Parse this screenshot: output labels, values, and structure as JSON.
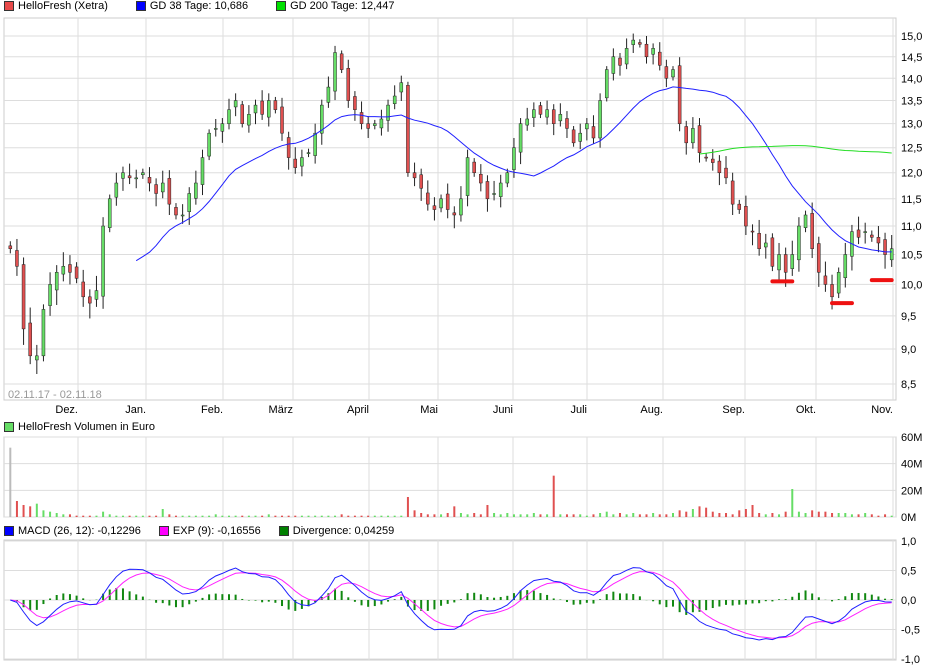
{
  "legend_main": [
    {
      "label": "HelloFresh (Xetra)",
      "color": "#e84a4a"
    },
    {
      "label": "GD 38 Tage: 10,686",
      "color": "#0000ff"
    },
    {
      "label": "GD 200 Tage: 12,447",
      "color": "#00e000"
    }
  ],
  "legend_volume": {
    "label": "HelloFresh Volumen in Euro",
    "color": "#66dd66"
  },
  "legend_macd": [
    {
      "label": "MACD (26, 12): -0,12296",
      "color": "#0000ff"
    },
    {
      "label": "EXP (9): -0,16556",
      "color": "#ff00ff"
    },
    {
      "label": "Divergence: 0,04259",
      "color": "#008000"
    }
  ],
  "date_range": "02.11.17 - 02.11.18",
  "chart_data": [
    {
      "type": "candlestick",
      "title": "HelloFresh (Xetra)",
      "yscale": "log",
      "ylim": [
        8.4,
        15.3
      ],
      "yticks": [
        "15,0",
        "14,5",
        "14,0",
        "13,5",
        "13,0",
        "12,5",
        "12,0",
        "11,5",
        "11,0",
        "10,5",
        "10,0",
        "9,5",
        "9,0",
        "8,5"
      ],
      "ytick_values": [
        15,
        14.5,
        14,
        13.5,
        13,
        12.5,
        12,
        11.5,
        11,
        10.5,
        10,
        9.5,
        9,
        8.5
      ],
      "xticks": [
        "Dez.",
        "Jan.",
        "Feb.",
        "März",
        "April",
        "Mai",
        "Juni",
        "Juli",
        "Aug.",
        "Sep.",
        "Okt.",
        "Nov."
      ],
      "closes": [
        10.6,
        10.3,
        9.3,
        8.9,
        8.9,
        9.6,
        10.0,
        10.2,
        10.3,
        10.2,
        10.1,
        9.8,
        9.7,
        9.9,
        11.0,
        11.5,
        11.8,
        12.0,
        11.9,
        11.9,
        12.0,
        11.8,
        11.6,
        11.8,
        11.4,
        11.2,
        11.2,
        11.6,
        11.8,
        12.3,
        12.8,
        12.9,
        13.0,
        13.3,
        13.5,
        13.0,
        13.2,
        13.4,
        13.2,
        13.5,
        13.3,
        12.8,
        12.3,
        12.1,
        12.3,
        12.4,
        12.8,
        13.4,
        13.8,
        14.6,
        14.2,
        13.5,
        13.3,
        13.0,
        12.9,
        13.0,
        13.1,
        13.4,
        13.6,
        13.9,
        12.0,
        11.9,
        11.7,
        11.4,
        11.3,
        11.5,
        11.3,
        11.2,
        11.5,
        12.3,
        12.0,
        11.8,
        11.5,
        11.6,
        11.8,
        12.0,
        12.5,
        13.0,
        13.1,
        13.3,
        13.2,
        13.3,
        13.0,
        13.2,
        12.9,
        12.6,
        12.8,
        13.0,
        12.7,
        13.5,
        14.2,
        14.5,
        14.3,
        14.7,
        14.9,
        14.8,
        14.5,
        14.7,
        14.3,
        14.0,
        14.2,
        13.0,
        12.6,
        12.9,
        12.4,
        12.3,
        12.2,
        12.0,
        11.9,
        11.4,
        11.3,
        11.0,
        10.9,
        10.6,
        10.7,
        10.3,
        10.5,
        10.2,
        10.5,
        11.0,
        11.2,
        10.6,
        10.2,
        10.0,
        9.8,
        10.2,
        10.5,
        10.9,
        10.8,
        10.9,
        10.8,
        10.7,
        10.5,
        10.6
      ],
      "sma_windows": {
        "GD 38": 38,
        "GD 200": 200
      },
      "trading_days": 255,
      "annotations": [
        {
          "type": "support-mark",
          "price": 10.05,
          "from_index": 115,
          "to_index": 118
        },
        {
          "type": "support-mark",
          "price": 9.7,
          "from_index": 124,
          "to_index": 127
        },
        {
          "type": "support-mark",
          "price": 10.07,
          "from_index": 130,
          "to_index": 134
        }
      ]
    },
    {
      "type": "bar",
      "title": "HelloFresh Volumen in Euro",
      "ylim": [
        0,
        60
      ],
      "yticks": [
        "60M",
        "40M",
        "20M",
        "0M"
      ],
      "ytick_values": [
        60,
        40,
        20,
        0
      ],
      "unit": "M EUR",
      "values": [
        52,
        12,
        9,
        8,
        10,
        5,
        4,
        3,
        2,
        2,
        1,
        1,
        1,
        1,
        4,
        2,
        1,
        1,
        1,
        1,
        1,
        1,
        1,
        6,
        2,
        1,
        1,
        1,
        1,
        1,
        1,
        2,
        1,
        1,
        1,
        1,
        1,
        1,
        1,
        2,
        1,
        1,
        1,
        1,
        1,
        1,
        1,
        1,
        1,
        1,
        2,
        1,
        1,
        1,
        1,
        1,
        1,
        1,
        1,
        1,
        15,
        5,
        3,
        2,
        2,
        2,
        3,
        8,
        3,
        2,
        3,
        2,
        9,
        3,
        2,
        3,
        2,
        2,
        2,
        3,
        2,
        2,
        31,
        2,
        2,
        2,
        2,
        1,
        2,
        3,
        4,
        2,
        3,
        2,
        3,
        2,
        2,
        3,
        2,
        2,
        3,
        5,
        4,
        6,
        8,
        7,
        4,
        3,
        3,
        2,
        5,
        6,
        9,
        3,
        2,
        3,
        2,
        4,
        21,
        4,
        3,
        5,
        4,
        4,
        3,
        3,
        3,
        2,
        2,
        3,
        2,
        1,
        2,
        1
      ]
    },
    {
      "type": "line",
      "title": "MACD",
      "ylim": [
        -1,
        1
      ],
      "yticks": [
        "1,0",
        "0,5",
        "0,0",
        "-0,5",
        "-1,0"
      ],
      "ytick_values": [
        1,
        0.5,
        0,
        -0.5,
        -1
      ],
      "series": [
        {
          "name": "MACD (26, 12)",
          "last": -0.12296
        },
        {
          "name": "EXP (9)",
          "last": -0.16556
        },
        {
          "name": "Divergence",
          "last": 0.04259
        }
      ]
    }
  ],
  "colors": {
    "up": "#66dd66",
    "down": "#e05050",
    "gd38": "#2020ff",
    "gd200": "#22dd22",
    "macd": "#2020ff",
    "signal": "#ff22ff",
    "divergence": "#118811",
    "annotation": "#ee1111",
    "grid": "#dddddd"
  }
}
